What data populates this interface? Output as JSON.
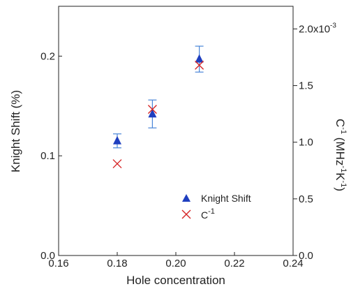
{
  "chart_data": {
    "type": "scatter",
    "xlabel": "Hole concentration",
    "ylabel_left": "Knight Shift  (%)",
    "ylabel_right": "C^-1  (MHz^-1 K^-1)",
    "xlim": [
      0.16,
      0.24
    ],
    "ylim_left": [
      0.0,
      0.25
    ],
    "ylim_right": [
      0.0,
      2.2
    ],
    "x_ticks": [
      0.16,
      0.18,
      0.2,
      0.22,
      0.24
    ],
    "x_tick_labels": [
      "0.16",
      "0.18",
      "0.20",
      "0.22",
      "0.24"
    ],
    "y_left_ticks": [
      0.0,
      0.1,
      0.2
    ],
    "y_left_tick_labels": [
      "0.0",
      "0.1",
      "0.2"
    ],
    "y_right_ticks": [
      0.0,
      0.5,
      1.0,
      1.5,
      2.0
    ],
    "y_right_tick_labels": [
      "0.0",
      "0.5",
      "1.0",
      "1.5",
      "2.0x10"
    ],
    "y_right_exponent": "-3",
    "grid": false,
    "legend_position": "bottom-right",
    "series": [
      {
        "name": "Knight Shift",
        "axis": "left",
        "marker": "triangle",
        "color": "#1f3fbf",
        "x": [
          0.18,
          0.192,
          0.208
        ],
        "y": [
          0.115,
          0.142,
          0.197
        ],
        "yerr": [
          0.007,
          0.014,
          0.013
        ]
      },
      {
        "name": "C^-1",
        "axis": "right",
        "marker": "x",
        "color": "#d62728",
        "x": [
          0.18,
          0.192,
          0.208
        ],
        "y": [
          0.81,
          1.29,
          1.68
        ]
      }
    ]
  },
  "legend": {
    "knight_shift": "Knight Shift",
    "c_inv_base": "C",
    "c_inv_sup": "-1"
  },
  "axis_titles": {
    "x": "Hole concentration",
    "y_left": "Knight Shift  (%)",
    "y_right_c": "C",
    "y_right_sup1": "-1",
    "y_right_mid": " (MHz",
    "y_right_sup2": "-1",
    "y_right_k": "K",
    "y_right_sup3": "-1",
    "y_right_end": ")"
  }
}
